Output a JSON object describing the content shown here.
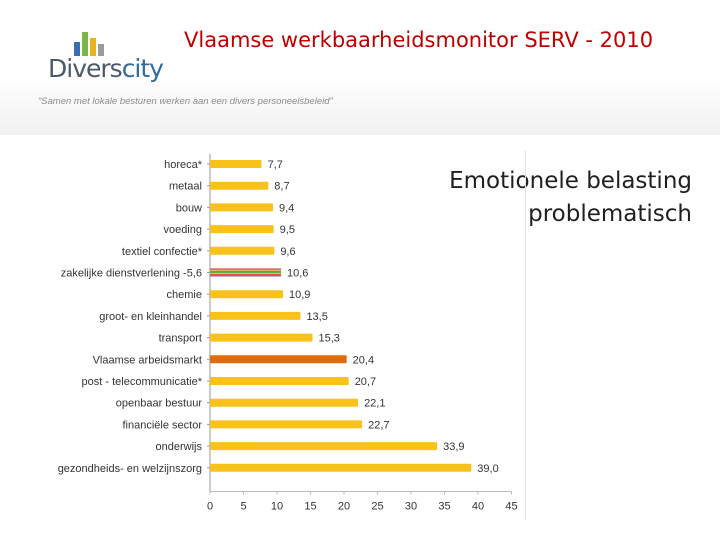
{
  "header": {
    "title": "Vlaamse werkbaarheidsmonitor SERV - 2010",
    "logo_text_main": "Divers",
    "logo_text_accent": "city",
    "tagline": "“Samen met lokale besturen werken aan een divers personeelsbeleid”"
  },
  "side_text": {
    "line1": "Emotionele belasting",
    "line2": "problematisch"
  },
  "colors": {
    "bar": "#f9c21b",
    "highlight_bar": "#e36c0a",
    "title": "#c00000",
    "logo_bars": [
      "#3b6fb4",
      "#7ab648",
      "#e8b41c",
      "#9b9b9b"
    ]
  },
  "chart_data": {
    "type": "bar",
    "orientation": "horizontal",
    "categories": [
      "horeca*",
      "metaal",
      "bouw",
      "voeding",
      "textiel confectie*",
      "zakelijke dienstverlening -5,6",
      "chemie",
      "groot- en kleinhandel",
      "transport",
      "Vlaamse arbeidsmarkt",
      "post - telecommunicatie*",
      "openbaar bestuur",
      "financiële sector",
      "onderwijs",
      "gezondheids- en welzijnszorg"
    ],
    "values": [
      7.7,
      8.7,
      9.4,
      9.5,
      9.6,
      10.6,
      10.9,
      13.5,
      15.3,
      20.4,
      20.7,
      22.1,
      22.7,
      33.9,
      39.0
    ],
    "value_labels": [
      "7,7",
      "8,7",
      "9,4",
      "9,5",
      "9,6",
      "10,6",
      "10,9",
      "13,5",
      "15,3",
      "20,4",
      "20,7",
      "22,1",
      "22,7",
      "33,9",
      "39,0"
    ],
    "highlight_category": "Vlaamse arbeidsmarkt",
    "striped_category": "zakelijke dienstverlening -5,6",
    "striped_colors": [
      "#e8202a",
      "#f7c21b",
      "#3b8fd0",
      "#55b947",
      "#f7c21b",
      "#e8202a",
      "#9b59b6"
    ],
    "xlim": [
      0,
      45
    ],
    "xticks": [
      "0",
      "5",
      "10",
      "15",
      "20",
      "25",
      "30",
      "35",
      "40",
      "45"
    ],
    "xtick_values": [
      0,
      5,
      10,
      15,
      20,
      25,
      30,
      35,
      40,
      45
    ],
    "title": "",
    "xlabel": "",
    "ylabel": "",
    "grid": false
  }
}
